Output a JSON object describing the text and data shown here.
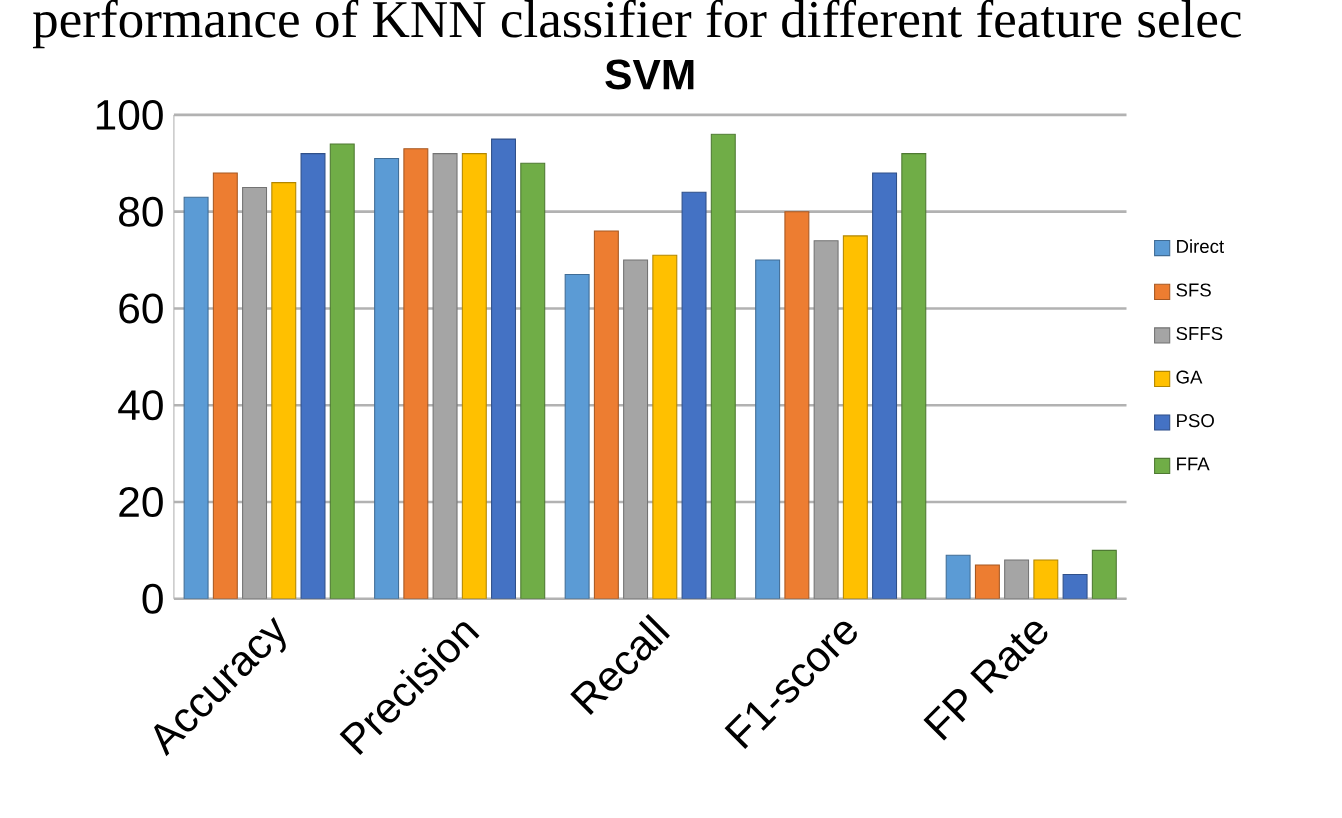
{
  "chart_data": {
    "type": "bar",
    "title": "SVM",
    "annotations": [
      "performance of KNN classifier for different feature selec"
    ],
    "categories": [
      "Accuracy",
      "Precision",
      "Recall",
      "F1-score",
      "FP Rate"
    ],
    "series": [
      {
        "name": "Direct",
        "color": "#5b9bd5",
        "values": [
          83,
          91,
          67,
          70,
          9
        ]
      },
      {
        "name": "SFS",
        "color": "#ed7d31",
        "values": [
          88,
          93,
          76,
          80,
          7
        ]
      },
      {
        "name": "SFFS",
        "color": "#a5a5a5",
        "values": [
          85,
          92,
          70,
          74,
          8
        ]
      },
      {
        "name": "GA",
        "color": "#ffc000",
        "values": [
          86,
          92,
          71,
          75,
          8
        ]
      },
      {
        "name": "PSO",
        "color": "#4472c4",
        "values": [
          92,
          95,
          84,
          88,
          5
        ]
      },
      {
        "name": "FFA",
        "color": "#70ad47",
        "values": [
          94,
          90,
          96,
          92,
          10
        ]
      }
    ],
    "ylim": [
      0,
      100
    ],
    "yticks": [
      0,
      20,
      40,
      60,
      80,
      100
    ],
    "grid": "y",
    "legend": "right"
  }
}
